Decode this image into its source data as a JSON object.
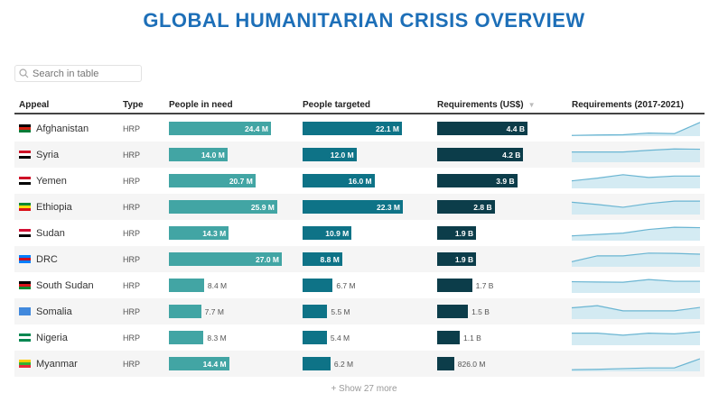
{
  "title": "GLOBAL HUMANITARIAN CRISIS OVERVIEW",
  "search": {
    "placeholder": "Search in table",
    "icon": "search-icon"
  },
  "columns": [
    "Appeal",
    "Type",
    "People in need",
    "People targeted",
    "Requirements (US$)",
    "Requirements (2017-2021)"
  ],
  "sort_indicator": "▼",
  "colors": {
    "title": "#1d6fb8",
    "need": "#42a5a4",
    "targeted": "#0e7387",
    "requirements": "#0c3d4a",
    "sparkline_fill": "#cde7f1",
    "sparkline_line": "#6ab5d2"
  },
  "rows": [
    {
      "appeal": "Afghanistan",
      "type": "HRP",
      "need": 24.4,
      "need_label": "24.4 M",
      "targeted": 22.1,
      "targeted_label": "22.1 M",
      "req": 4.4,
      "req_label": "4.4 B",
      "trend": [
        0.05,
        0.08,
        0.1,
        0.22,
        0.18,
        1.0
      ],
      "flag": [
        "#000",
        "#d32011",
        "#007a36"
      ]
    },
    {
      "appeal": "Syria",
      "type": "HRP",
      "need": 14.0,
      "need_label": "14.0 M",
      "targeted": 12.0,
      "targeted_label": "12.0 M",
      "req": 4.2,
      "req_label": "4.2 B",
      "trend": [
        0.75,
        0.75,
        0.75,
        0.87,
        0.97,
        0.95
      ],
      "flag": [
        "#ce1126",
        "#fff",
        "#000"
      ]
    },
    {
      "appeal": "Yemen",
      "type": "HRP",
      "need": 20.7,
      "need_label": "20.7 M",
      "targeted": 16.0,
      "targeted_label": "16.0 M",
      "req": 3.9,
      "req_label": "3.9 B",
      "trend": [
        0.55,
        0.75,
        1,
        0.8,
        0.9,
        0.9
      ],
      "flag": [
        "#ce1126",
        "#fff",
        "#000"
      ]
    },
    {
      "appeal": "Ethiopia",
      "type": "HRP",
      "need": 25.9,
      "need_label": "25.9 M",
      "targeted": 22.3,
      "targeted_label": "22.3 M",
      "req": 2.8,
      "req_label": "2.8 B",
      "trend": [
        0.9,
        0.73,
        0.53,
        0.8,
        0.98,
        0.98
      ],
      "flag": [
        "#078930",
        "#fcdd09",
        "#da121a"
      ]
    },
    {
      "appeal": "Sudan",
      "type": "HRP",
      "need": 14.3,
      "need_label": "14.3 M",
      "targeted": 10.9,
      "targeted_label": "10.9 M",
      "req": 1.9,
      "req_label": "1.9 B",
      "trend": [
        0.35,
        0.45,
        0.55,
        0.82,
        0.98,
        0.95
      ],
      "flag": [
        "#d21034",
        "#fff",
        "#000"
      ]
    },
    {
      "appeal": "DRC",
      "type": "HRP",
      "need": 27.0,
      "need_label": "27.0 M",
      "targeted": 8.8,
      "targeted_label": "8.8 M",
      "req": 1.9,
      "req_label": "1.9 B",
      "trend": [
        0.37,
        0.8,
        0.8,
        1,
        0.98,
        0.92
      ],
      "flag": [
        "#007fff",
        "#ce1021",
        "#007fff"
      ]
    },
    {
      "appeal": "South Sudan",
      "type": "HRP",
      "need": 8.4,
      "need_label": "8.4 M",
      "targeted": 6.7,
      "targeted_label": "6.7 M",
      "req": 1.7,
      "req_label": "1.7 B",
      "trend": [
        0.82,
        0.8,
        0.78,
        0.98,
        0.85,
        0.85
      ],
      "flag": [
        "#000",
        "#da121a",
        "#078930"
      ]
    },
    {
      "appeal": "Somalia",
      "type": "HRP",
      "need": 7.7,
      "need_label": "7.7 M",
      "targeted": 5.5,
      "targeted_label": "5.5 M",
      "req": 1.5,
      "req_label": "1.5 B",
      "trend": [
        0.82,
        0.98,
        0.6,
        0.6,
        0.6,
        0.85
      ],
      "flag": [
        "#4189dd",
        "#4189dd",
        "#4189dd"
      ]
    },
    {
      "appeal": "Nigeria",
      "type": "HRP",
      "need": 8.3,
      "need_label": "8.3 M",
      "targeted": 5.4,
      "targeted_label": "5.4 M",
      "req": 1.1,
      "req_label": "1.1 B",
      "trend": [
        0.88,
        0.88,
        0.73,
        0.88,
        0.83,
        0.98
      ],
      "flag": [
        "#008751",
        "#fff",
        "#008751"
      ]
    },
    {
      "appeal": "Myanmar",
      "type": "HRP",
      "need": 14.4,
      "need_label": "14.4 M",
      "targeted": 6.2,
      "targeted_label": "6.2 M",
      "req": 0.826,
      "req_label": "826.0 M",
      "trend": [
        0.12,
        0.15,
        0.2,
        0.25,
        0.25,
        0.92
      ],
      "flag": [
        "#fecb00",
        "#34b233",
        "#ea2839"
      ]
    }
  ],
  "show_more": "+ Show 27 more"
}
